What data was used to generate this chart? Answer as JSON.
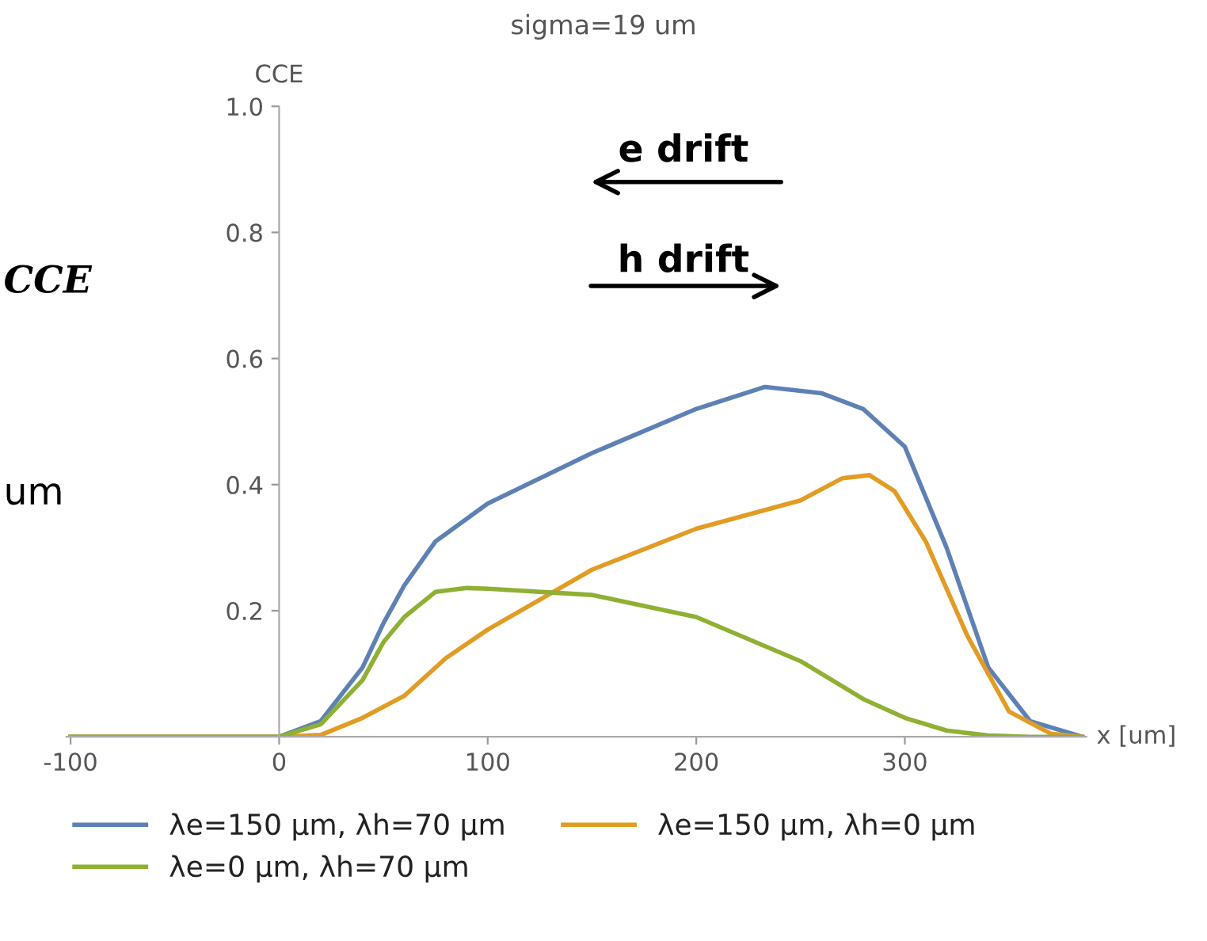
{
  "chart_data": {
    "type": "line",
    "title": "sigma=19 um",
    "ylabel": "CCE",
    "xlabel": "x [um]",
    "xlim": [
      -102,
      387
    ],
    "xticks": [
      -100,
      0,
      100,
      200,
      300
    ],
    "ylim": [
      0,
      1.0
    ],
    "yticks": [
      0.2,
      0.4,
      0.6,
      0.8,
      {
        "value": 1.0,
        "label": "1.0"
      }
    ],
    "grid": false,
    "legend": "bottom",
    "marker": "none",
    "line_style": "solid",
    "annotations": [
      "e drift",
      "h drift",
      "CCE",
      "um"
    ],
    "series": [
      {
        "name": "λe=150 μm, λh=70 μm",
        "color": "#5e81b5",
        "x": [
          -100,
          0,
          20,
          40,
          50,
          60,
          75,
          100,
          150,
          200,
          233,
          260,
          280,
          300,
          320,
          340,
          360,
          385
        ],
        "values": [
          0,
          0,
          0.025,
          0.11,
          0.18,
          0.24,
          0.31,
          0.37,
          0.45,
          0.52,
          0.555,
          0.545,
          0.52,
          0.46,
          0.3,
          0.11,
          0.025,
          0
        ]
      },
      {
        "name": "λe=150 μm, λh=0 μm",
        "color": "#e19c24",
        "x": [
          -100,
          0,
          20,
          40,
          60,
          80,
          100,
          150,
          200,
          250,
          270,
          283,
          295,
          310,
          330,
          350,
          370,
          385
        ],
        "values": [
          0,
          0,
          0.003,
          0.03,
          0.065,
          0.125,
          0.17,
          0.265,
          0.33,
          0.375,
          0.41,
          0.415,
          0.39,
          0.31,
          0.16,
          0.04,
          0.005,
          0
        ]
      },
      {
        "name": "λe=0 μm, λh=70 μm",
        "color": "#8fb032",
        "x": [
          -100,
          0,
          20,
          40,
          50,
          60,
          75,
          90,
          100,
          150,
          200,
          250,
          280,
          300,
          320,
          340,
          360,
          385
        ],
        "values": [
          0,
          0,
          0.02,
          0.09,
          0.15,
          0.19,
          0.23,
          0.236,
          0.235,
          0.225,
          0.19,
          0.12,
          0.06,
          0.03,
          0.01,
          0.002,
          0,
          0
        ]
      }
    ]
  }
}
